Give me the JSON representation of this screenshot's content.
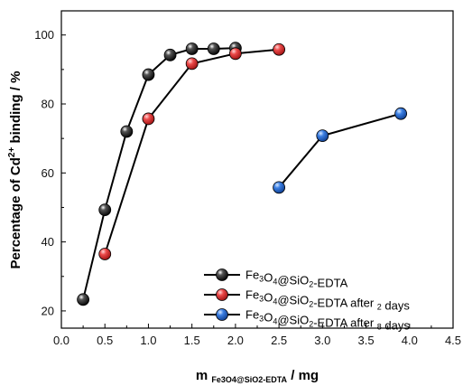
{
  "chart_data": {
    "type": "line",
    "xlim": [
      0.0,
      4.5
    ],
    "ylim": [
      15,
      107
    ],
    "xticks": [
      0.0,
      0.5,
      1.0,
      1.5,
      2.0,
      2.5,
      3.0,
      3.5,
      4.0,
      4.5
    ],
    "xtick_labels": [
      "0.0",
      "0.5",
      "1.0",
      "1.5",
      "2.0",
      "2.5",
      "3.0",
      "3.5",
      "4.0",
      "4.5"
    ],
    "yticks": [
      20,
      40,
      60,
      80,
      100
    ],
    "ytick_labels": [
      "20",
      "40",
      "60",
      "80",
      "100"
    ],
    "xlabel": {
      "main": "m",
      "sub": "Fe3O4@SiO2-EDTA",
      "unit": " / mg"
    },
    "ylabel": {
      "pre": "Percentage of Cd",
      "sup": "2+",
      "post": " binding / %"
    },
    "legend_position": "bottom-right",
    "series": [
      {
        "name": "Fe3O4@SiO2-EDTA",
        "color": "#1a1a1a",
        "x": [
          0.25,
          0.5,
          0.75,
          1.0,
          1.25,
          1.5,
          1.75,
          2.0
        ],
        "y": [
          23.3,
          49.3,
          72.0,
          88.5,
          94.2,
          96.0,
          96.0,
          96.2
        ]
      },
      {
        "name": "Fe3O4@SiO2-EDTA after 2 days",
        "color": "#e23b3b",
        "x": [
          0.5,
          1.0,
          1.5,
          2.0,
          2.5
        ],
        "y": [
          36.5,
          75.7,
          91.7,
          94.6,
          95.8
        ]
      },
      {
        "name": "Fe3O4@SiO2-EDTA after 8 days",
        "color": "#2b6fd6",
        "x": [
          2.5,
          3.0,
          3.9
        ],
        "y": [
          55.8,
          70.8,
          77.2
        ]
      }
    ]
  }
}
